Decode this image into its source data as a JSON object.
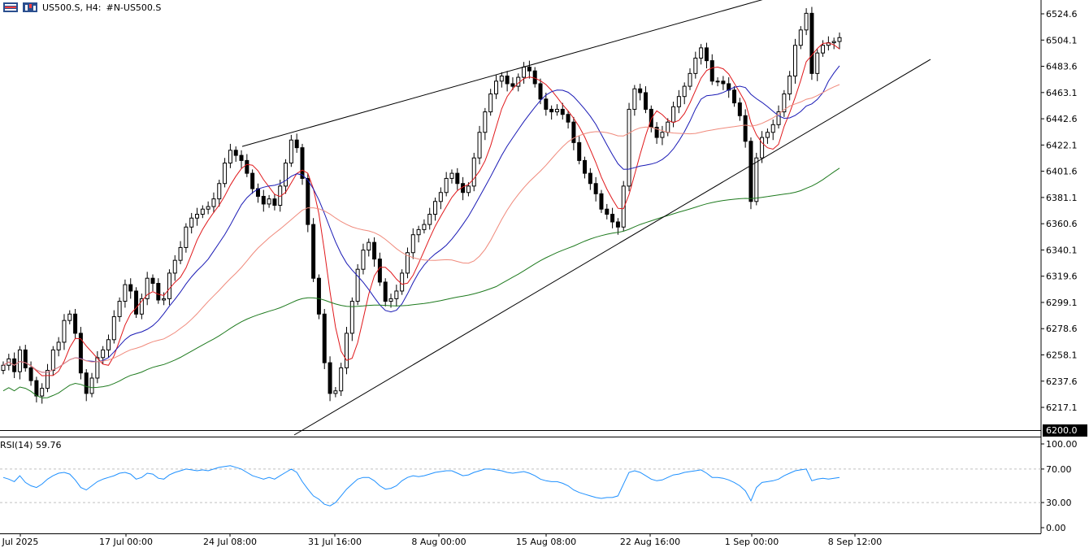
{
  "header": {
    "symbol_timeframe": "US500.S, H4:",
    "description": "#N-US500.S",
    "menu_icon": "menu-icon",
    "chart_icon": "candles-icon"
  },
  "rsi_panel": {
    "label": "RSI(14) 59.76"
  },
  "colors": {
    "candle": "#000000",
    "ma_fast": "#e0191c",
    "ma_mid": "#1a1ab5",
    "ma_slow": "#f08a7c",
    "ma_long": "#1e7a1e",
    "rsi": "#1e90ff",
    "grid_dash": "#c0c0c0"
  },
  "chart_data": {
    "type": "candlestick",
    "price_axis": {
      "ticks": [
        "6524.6",
        "6504.1",
        "6483.6",
        "6463.1",
        "6442.6",
        "6422.1",
        "6401.6",
        "6381.1",
        "6360.6",
        "6340.1",
        "6319.6",
        "6299.1",
        "6278.6",
        "6258.1",
        "6237.6",
        "6217.1"
      ],
      "marker": "6200.0",
      "range": [
        6200,
        6536
      ]
    },
    "time_axis": {
      "ticks": [
        "Jul 2025",
        "17 Jul 00:00",
        "24 Jul 08:00",
        "31 Jul 16:00",
        "8 Aug 00:00",
        "15 Aug 08:00",
        "22 Aug 16:00",
        "1 Sep 00:00",
        "8 Sep 12:00"
      ]
    },
    "rsi_axis": {
      "ticks": [
        "100.00",
        "70.00",
        "30.00",
        "0.00"
      ],
      "levels": [
        70,
        30
      ]
    },
    "close_series": [
      6250,
      6255,
      6245,
      6262,
      6248,
      6238,
      6226,
      6232,
      6246,
      6262,
      6268,
      6285,
      6290,
      6275,
      6244,
      6228,
      6240,
      6256,
      6262,
      6270,
      6288,
      6300,
      6313,
      6308,
      6290,
      6302,
      6318,
      6314,
      6301,
      6302,
      6322,
      6332,
      6342,
      6358,
      6365,
      6368,
      6372,
      6374,
      6380,
      6392,
      6408,
      6418,
      6414,
      6410,
      6400,
      6388,
      6382,
      6376,
      6380,
      6375,
      6390,
      6408,
      6426,
      6420,
      6396,
      6360,
      6318,
      6290,
      6252,
      6228,
      6230,
      6248,
      6275,
      6300,
      6325,
      6340,
      6346,
      6333,
      6315,
      6300,
      6302,
      6308,
      6322,
      6338,
      6352,
      6356,
      6360,
      6368,
      6378,
      6385,
      6396,
      6400,
      6392,
      6385,
      6390,
      6412,
      6432,
      6448,
      6462,
      6472,
      6476,
      6470,
      6468,
      6475,
      6483,
      6480,
      6470,
      6458,
      6450,
      6448,
      6450,
      6446,
      6440,
      6424,
      6410,
      6400,
      6392,
      6384,
      6372,
      6368,
      6362,
      6358,
      6390,
      6450,
      6466,
      6463,
      6450,
      6436,
      6428,
      6432,
      6440,
      6452,
      6460,
      6468,
      6478,
      6490,
      6498,
      6488,
      6472,
      6472,
      6470,
      6465,
      6455,
      6445,
      6425,
      6378,
      6412,
      6428,
      6432,
      6438,
      6448,
      6462,
      6476,
      6500,
      6512,
      6525,
      6478,
      6494,
      6500,
      6502,
      6503,
      6506
    ],
    "rsi_values": [
      60,
      58,
      55,
      62,
      54,
      50,
      48,
      52,
      58,
      62,
      65,
      66,
      64,
      57,
      48,
      45,
      50,
      55,
      58,
      60,
      62,
      65,
      66,
      64,
      58,
      60,
      65,
      64,
      59,
      58,
      63,
      66,
      68,
      70,
      69,
      68,
      69,
      68,
      70,
      72,
      73,
      74,
      72,
      70,
      66,
      62,
      60,
      58,
      60,
      58,
      62,
      66,
      70,
      66,
      55,
      46,
      38,
      34,
      28,
      26,
      30,
      38,
      46,
      52,
      58,
      60,
      60,
      56,
      50,
      46,
      47,
      50,
      56,
      60,
      62,
      61,
      62,
      64,
      66,
      67,
      68,
      68,
      65,
      62,
      63,
      66,
      68,
      70,
      70,
      69,
      68,
      66,
      65,
      66,
      67,
      65,
      62,
      58,
      56,
      55,
      55,
      53,
      50,
      45,
      42,
      40,
      38,
      36,
      35,
      36,
      36,
      38,
      52,
      66,
      68,
      66,
      62,
      58,
      56,
      57,
      60,
      63,
      64,
      66,
      67,
      68,
      69,
      65,
      60,
      60,
      59,
      57,
      54,
      50,
      44,
      32,
      48,
      54,
      55,
      56,
      58,
      62,
      65,
      68,
      69,
      70,
      56,
      58,
      59,
      58,
      59,
      60
    ]
  }
}
